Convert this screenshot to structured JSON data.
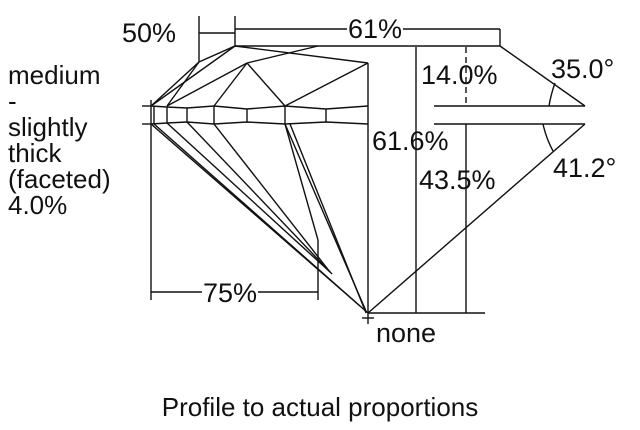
{
  "labels": {
    "table_percent": "61%",
    "star_length": "50%",
    "crown_height": "14.0%",
    "crown_angle": "35.0°",
    "total_depth": "61.6%",
    "pavilion_depth": "43.5%",
    "pavilion_angle": "41.2°",
    "lower_girdle": "75%",
    "culet": "none",
    "girdle": [
      "medium",
      "-",
      "slightly",
      "thick",
      "(faceted)",
      "4.0%"
    ]
  },
  "caption": "Profile to actual proportions"
}
